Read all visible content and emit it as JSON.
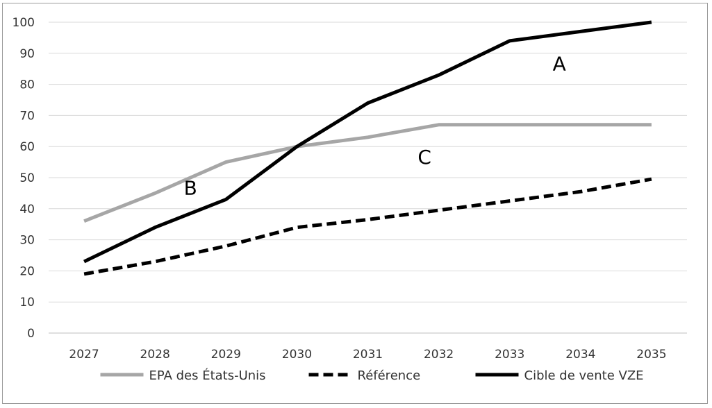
{
  "chart_data": {
    "type": "line",
    "title": "",
    "xlabel": "",
    "ylabel": "",
    "ylim": [
      0,
      100
    ],
    "ytick_step": 10,
    "grid": true,
    "legend_position": "bottom",
    "categories": [
      "2027",
      "2028",
      "2029",
      "2030",
      "2031",
      "2032",
      "2033",
      "2034",
      "2035"
    ],
    "series": [
      {
        "name": "EPA des États-Unis",
        "values": [
          36,
          45,
          55,
          60,
          63,
          67,
          67,
          67,
          67
        ],
        "color": "#a6a6a6",
        "style": "solid"
      },
      {
        "name": "Référence",
        "values": [
          19,
          23,
          28,
          34,
          36.5,
          39.5,
          42.5,
          45.5,
          49.5
        ],
        "color": "#000000",
        "style": "dashed"
      },
      {
        "name": "Cible de vente VZE",
        "values": [
          23,
          34,
          43,
          60,
          74,
          83,
          94,
          97,
          100
        ],
        "color": "#000000",
        "style": "solid"
      }
    ],
    "annotations": [
      {
        "text": "A",
        "x": "2033.7",
        "y": 84.5
      },
      {
        "text": "B",
        "x": "2028.5",
        "y": 44.5
      },
      {
        "text": "C",
        "x": "2031.8",
        "y": 54.5
      }
    ]
  }
}
